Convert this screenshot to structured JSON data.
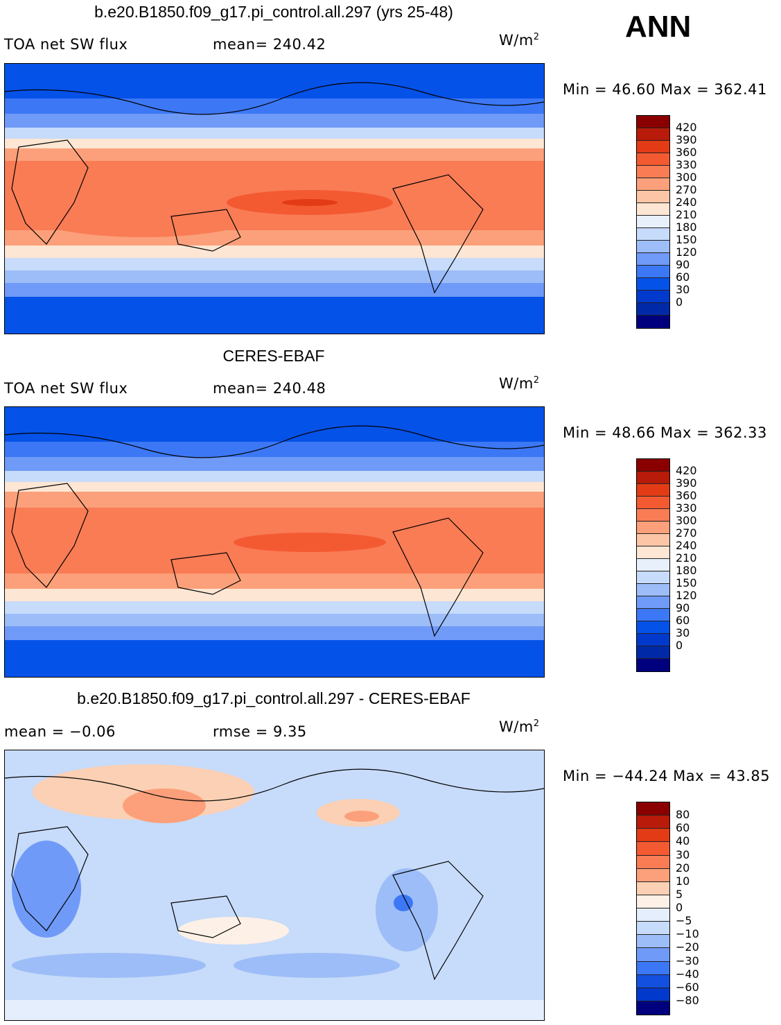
{
  "season": "ANN",
  "colors": {
    "abs_scale": [
      "#00007f",
      "#0029a8",
      "#0039cc",
      "#0552e8",
      "#3c78f5",
      "#6f9af7",
      "#9dbdf8",
      "#c7dbfa",
      "#e8f0fc",
      "#fde6d3",
      "#fcc6a6",
      "#fba07a",
      "#f97c55",
      "#f45a32",
      "#e23b16",
      "#b81b0a",
      "#8a0000"
    ],
    "diff_scale": [
      "#00007f",
      "#0039cc",
      "#1450e0",
      "#3c78f5",
      "#6f9af7",
      "#9dbdf8",
      "#c7dbfa",
      "#e4eefc",
      "#fdf0e6",
      "#fcd0b4",
      "#fba07a",
      "#f97c55",
      "#f45a32",
      "#e23b16",
      "#b81b0a",
      "#8a0000"
    ]
  },
  "panels": [
    {
      "title": "b.e20.B1850.f09_g17.pi_control.all.297 (yrs 25-48)",
      "left_label": "TOA net SW flux",
      "mid_label": "mean= 240.42",
      "units_base": "W/m",
      "units_sup": "2",
      "minmax": "Min =   46.60  Max = 362.41",
      "levels": [
        "420",
        "390",
        "360",
        "330",
        "300",
        "270",
        "240",
        "210",
        "180",
        "150",
        "120",
        "90",
        "60",
        "30",
        "0"
      ]
    },
    {
      "title": "CERES-EBAF",
      "left_label": "TOA net SW flux",
      "mid_label": "mean= 240.48",
      "units_base": "W/m",
      "units_sup": "2",
      "minmax": "Min =   48.66  Max = 362.33",
      "levels": [
        "420",
        "390",
        "360",
        "330",
        "300",
        "270",
        "240",
        "210",
        "180",
        "150",
        "120",
        "90",
        "60",
        "30",
        "0"
      ]
    },
    {
      "title": "b.e20.B1850.f09_g17.pi_control.all.297 - CERES-EBAF",
      "left_label": "mean =   −0.06",
      "mid_label": "rmse =    9.35",
      "units_base": "W/m",
      "units_sup": "2",
      "minmax": "Min = −44.24  Max =   43.85",
      "levels": [
        "80",
        "60",
        "40",
        "30",
        "20",
        "10",
        "5",
        "0",
        "−5",
        "−10",
        "−20",
        "−30",
        "−40",
        "−60",
        "−80"
      ]
    }
  ]
}
